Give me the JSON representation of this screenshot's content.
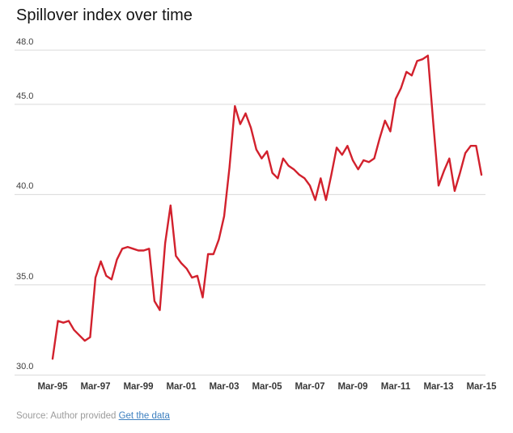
{
  "header": {
    "title": "Spillover index over time"
  },
  "chart_data": {
    "type": "line",
    "title": "Spillover index over time",
    "xlabel": "",
    "ylabel": "",
    "frequency": "quarterly",
    "x_start": "Mar-1995",
    "x_end": "Mar-2015",
    "x_tick_labels": [
      "Mar-95",
      "Mar-97",
      "Mar-99",
      "Mar-01",
      "Mar-03",
      "Mar-05",
      "Mar-07",
      "Mar-09",
      "Mar-11",
      "Mar-13",
      "Mar-15"
    ],
    "y_ticks": [
      {
        "value": 48.0,
        "label": "48.0"
      },
      {
        "value": 45.0,
        "label": "45.0"
      },
      {
        "value": 40.0,
        "label": "40.0"
      },
      {
        "value": 35.0,
        "label": "35.0"
      },
      {
        "value": 30.0,
        "label": "30.0"
      }
    ],
    "ylim": [
      30.0,
      48.0
    ],
    "grid": true,
    "legend": "none",
    "series": [
      {
        "name": "Spillover index",
        "values": [
          30.9,
          33.0,
          32.9,
          33.0,
          32.5,
          32.2,
          31.9,
          32.1,
          35.4,
          36.3,
          35.5,
          35.3,
          36.4,
          37.0,
          37.1,
          37.0,
          36.9,
          36.9,
          37.0,
          34.1,
          33.6,
          37.3,
          39.4,
          36.6,
          36.2,
          35.9,
          35.4,
          35.5,
          34.3,
          36.7,
          36.7,
          37.5,
          38.8,
          41.5,
          44.9,
          43.9,
          44.5,
          43.7,
          42.5,
          42.0,
          42.4,
          41.2,
          40.9,
          42.0,
          41.6,
          41.4,
          41.1,
          40.9,
          40.5,
          39.7,
          40.9,
          39.7,
          41.1,
          42.6,
          42.2,
          42.7,
          41.9,
          41.4,
          41.9,
          41.8,
          42.0,
          43.1,
          44.1,
          43.5,
          45.3,
          45.9,
          46.8,
          46.6,
          47.4,
          47.5,
          47.7,
          44.0,
          40.5,
          41.3,
          42.0,
          40.2,
          41.2,
          42.3,
          42.7,
          42.7,
          41.1
        ]
      }
    ],
    "colors": {
      "line": "#d2212d",
      "grid": "#d9d9d9",
      "tick_text": "#3d3d3d"
    }
  },
  "footer": {
    "source_text": "Source: Author provided",
    "link_label": "Get the data"
  }
}
